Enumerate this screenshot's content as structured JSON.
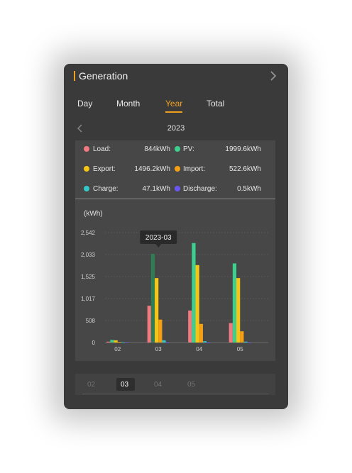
{
  "header": {
    "title": "Generation"
  },
  "tabs": [
    {
      "label": "Day"
    },
    {
      "label": "Month"
    },
    {
      "label": "Year"
    },
    {
      "label": "Total"
    }
  ],
  "active_tab": "Year",
  "year": "2023",
  "stats": {
    "load": {
      "label": "Load:",
      "value": "844kWh",
      "color": "#f07a80"
    },
    "pv": {
      "label": "PV:",
      "value": "1999.6kWh",
      "color": "#3ecf8e"
    },
    "export": {
      "label": "Export:",
      "value": "1496.2kWh",
      "color": "#f5c518"
    },
    "import": {
      "label": "Import:",
      "value": "522.6kWh",
      "color": "#f5a014"
    },
    "charge": {
      "label": "Charge:",
      "value": "47.1kWh",
      "color": "#34c8c8"
    },
    "discharge": {
      "label": "Discharge:",
      "value": "0.5kWh",
      "color": "#6a56f0"
    }
  },
  "chart_data": {
    "type": "bar",
    "ylabel": "(kWh)",
    "ylim": [
      0,
      2542
    ],
    "yticks": [
      "0",
      "508",
      "1,017",
      "1,525",
      "2,033",
      "2,542"
    ],
    "ytick_values": [
      0,
      508,
      1017,
      1525,
      2033,
      2542
    ],
    "categories": [
      "02",
      "03",
      "04",
      "05"
    ],
    "series": [
      {
        "name": "Load",
        "color": "#f07a80",
        "values": [
          20,
          850,
          740,
          450
        ]
      },
      {
        "name": "PV",
        "color": "#3ecf8e",
        "values": [
          60,
          2050,
          2300,
          1830
        ]
      },
      {
        "name": "Export",
        "color": "#f5c518",
        "values": [
          50,
          1490,
          1790,
          1490
        ]
      },
      {
        "name": "Import",
        "color": "#f5a014",
        "values": [
          15,
          530,
          430,
          260
        ]
      },
      {
        "name": "Charge",
        "color": "#34c8c8",
        "values": [
          5,
          50,
          30,
          20
        ]
      },
      {
        "name": "Discharge",
        "color": "#6a56f0",
        "values": [
          1,
          2,
          2,
          1
        ]
      }
    ],
    "highlight_category": "03",
    "tooltip": "2023-03",
    "grid": true,
    "legend": "none"
  },
  "bottom_strip": {
    "labels": [
      "02",
      "03",
      "04",
      "05"
    ],
    "active": "03"
  }
}
